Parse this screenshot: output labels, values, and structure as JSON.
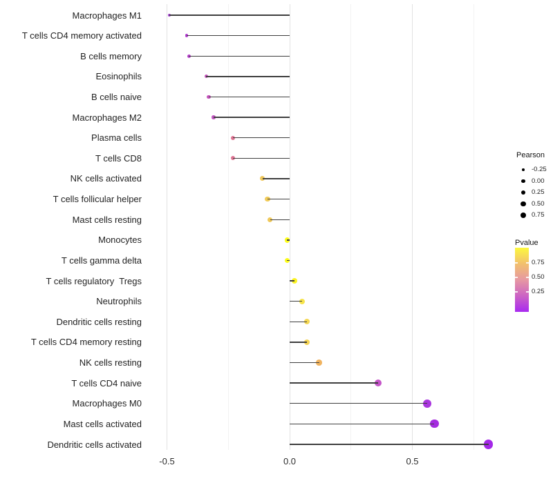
{
  "chart_data": {
    "type": "lollipop",
    "title": "",
    "xlabel": "",
    "ylabel": "",
    "orientation": "horizontal",
    "x_major_ticks": [
      -0.5,
      0.0,
      0.5
    ],
    "x_major_tick_labels": [
      "-0.5",
      "0.0",
      "0.5"
    ],
    "x_minor_ticks": [
      -0.25,
      0.25,
      0.75
    ],
    "xlim": [
      -0.59,
      0.87
    ],
    "baseline": 0.0,
    "grid": "on",
    "categories": [
      "Macrophages M1",
      "T cells CD4 memory activated",
      "B cells memory",
      "Eosinophils",
      "B cells naive",
      "Macrophages M2",
      "Plasma cells",
      "T cells CD8",
      "NK cells activated",
      "T cells follicular helper",
      "Mast cells resting",
      "Monocytes",
      "T cells gamma delta",
      "T cells regulatory  Tregs",
      "Neutrophils",
      "Dendritic cells resting",
      "T cells CD4 memory resting",
      "NK cells resting",
      "T cells CD4 naive",
      "Macrophages M0",
      "Mast cells activated",
      "Dendritic cells activated"
    ],
    "series": [
      {
        "name": "Pearson",
        "values": [
          -0.49,
          -0.42,
          -0.41,
          -0.34,
          -0.33,
          -0.31,
          -0.23,
          -0.23,
          -0.11,
          -0.09,
          -0.08,
          -0.01,
          -0.01,
          0.02,
          0.05,
          0.07,
          0.07,
          0.12,
          0.36,
          0.56,
          0.59,
          0.81
        ]
      }
    ],
    "point_colors": [
      "#A33FD1",
      "#B23CD1",
      "#B73FCE",
      "#C653BE",
      "#C653BE",
      "#C356C2",
      "#DD7492",
      "#DD7492",
      "#EFC75B",
      "#F0CB59",
      "#F0C95A",
      "#FCFC19",
      "#FCFC19",
      "#FAF222",
      "#F7E44B",
      "#F5D855",
      "#F5D455",
      "#F0B35F",
      "#C454C8",
      "#A936DE",
      "#A52BE0",
      "#A428E8"
    ],
    "stem_color": "#3d3d3d"
  },
  "legends": {
    "size": {
      "title": "Pearson",
      "entries": [
        "-0.25",
        "0.00",
        "0.25",
        "0.50",
        "0.75"
      ]
    },
    "color": {
      "title": "Pvalue",
      "entries": [
        "0.75",
        "0.50",
        "0.25"
      ],
      "gradient_top_color": "#FCF83D",
      "gradient_mid_color": "#E698A2",
      "gradient_bottom_color": "#A82AF0"
    }
  }
}
